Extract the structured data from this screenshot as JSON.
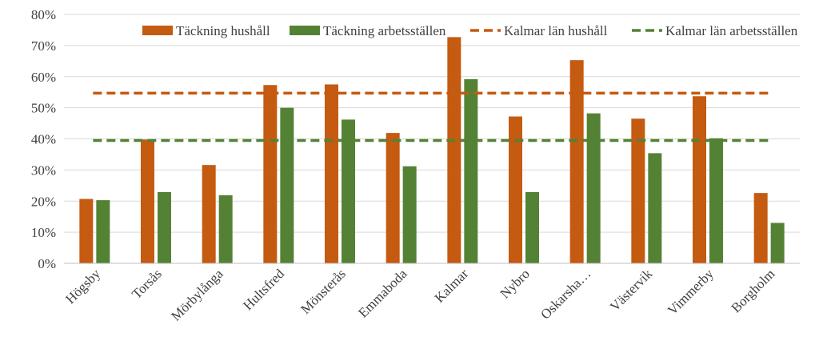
{
  "chart_data": {
    "type": "bar",
    "title": "",
    "xlabel": "",
    "ylabel": "",
    "ylim": [
      0,
      0.8
    ],
    "yticks": [
      "0%",
      "10%",
      "20%",
      "30%",
      "40%",
      "50%",
      "60%",
      "70%",
      "80%"
    ],
    "grid": true,
    "legend_position": "top-right",
    "categories": [
      "Högsby",
      "Torsås",
      "Mörbylånga",
      "Hultsfred",
      "Mönsterås",
      "Emmaboda",
      "Kalmar",
      "Nybro",
      "Oskarsha…",
      "Västervik",
      "Vimmerby",
      "Borgholm"
    ],
    "series": [
      {
        "name": "Täckning hushåll",
        "kind": "bar",
        "color": "#C55A11",
        "values": [
          0.207,
          0.398,
          0.316,
          0.573,
          0.575,
          0.419,
          0.727,
          0.472,
          0.653,
          0.465,
          0.537,
          0.226
        ]
      },
      {
        "name": "Täckning arbetsställen",
        "kind": "bar",
        "color": "#548235",
        "values": [
          0.203,
          0.229,
          0.219,
          0.5,
          0.462,
          0.312,
          0.592,
          0.229,
          0.482,
          0.354,
          0.402,
          0.13
        ]
      },
      {
        "name": "Kalmar län hushåll",
        "kind": "line-dashed",
        "color": "#C55A11",
        "value": 0.547
      },
      {
        "name": "Kalmar län arbetsställen",
        "kind": "line-dashed",
        "color": "#548235",
        "value": 0.395
      }
    ]
  }
}
